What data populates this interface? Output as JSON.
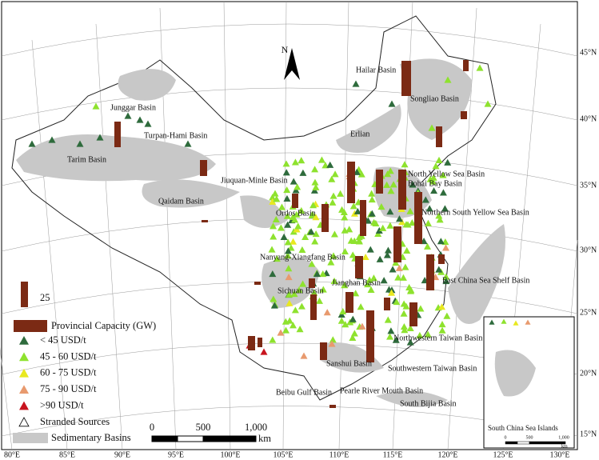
{
  "north_arrow": "N",
  "lat_labels": [
    "45°N",
    "40°N",
    "35°N",
    "30°N",
    "25°N",
    "20°N",
    "15°N"
  ],
  "lon_labels": [
    "80°E",
    "85°E",
    "90°E",
    "95°E",
    "100°E",
    "105°E",
    "110°E",
    "115°E",
    "120°E",
    "125°E",
    "130°E"
  ],
  "basin_labels": [
    "Hailar Basin",
    "Songliao Basin",
    "Junggar Basin",
    "Turpan-Hami Basin",
    "Tarim Basin",
    "Erlian",
    "Jiuquan-Minle Basin",
    "North Yellow Sea Basin",
    "Bohai Bay Basin",
    "Qaidam Basin",
    "Ordos Basin",
    "Northern South Yellow Sea Basin",
    "Nanyang-Xiangfang Basin",
    "Sichuan Basin",
    "Jianghan Basin",
    "East China Sea Shelf Basin",
    "Northwestern Taiwan Basin",
    "Sanshui Basin",
    "Southwestern Taiwan Basin",
    "Beibu Gulf Basin",
    "Pearle River Mouth Basin",
    "South Bijia Basin"
  ],
  "legend": {
    "bar_size": "25",
    "capacity": "Provincial Capacity (GW)",
    "items": [
      "< 45 USD/t",
      "45 - 60 USD/t",
      "60 - 75 USD/t",
      "75 - 90 USD/t",
      ">90 USD/t",
      "Stranded Sources"
    ],
    "basins": "Sedimentary Basins"
  },
  "scale_bar": {
    "ticks": [
      "0",
      "500",
      "1,000"
    ],
    "unit": "km"
  },
  "inset": {
    "title": "South China Sea Islands",
    "ticks": [
      "0",
      "500",
      "1,000"
    ],
    "unit": "km"
  }
}
